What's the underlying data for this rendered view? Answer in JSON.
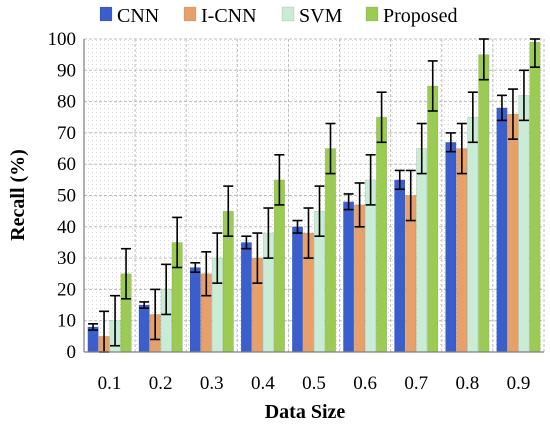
{
  "chart_data": {
    "type": "bar",
    "xlabel": "Data Size",
    "ylabel": "Recall (%)",
    "ylim": [
      0,
      100
    ],
    "yticks": [
      0,
      10,
      20,
      30,
      40,
      50,
      60,
      70,
      80,
      90,
      100
    ],
    "grid": true,
    "legend_position": "top",
    "categories": [
      "0.1",
      "0.2",
      "0.3",
      "0.4",
      "0.5",
      "0.6",
      "0.7",
      "0.8",
      "0.9"
    ],
    "series": [
      {
        "name": "CNN",
        "color": "#3A5FCD",
        "values": [
          8,
          15,
          27,
          35,
          40,
          48,
          55,
          67,
          78
        ],
        "errors": [
          1,
          1,
          1.5,
          2,
          2,
          2.5,
          3,
          3,
          4
        ]
      },
      {
        "name": "I-CNN",
        "color": "#E8A06A",
        "values": [
          5,
          12,
          25,
          30,
          38,
          47,
          50,
          65,
          76
        ],
        "errors": [
          8,
          8,
          7,
          8,
          8,
          7,
          8,
          8,
          8
        ]
      },
      {
        "name": "SVM",
        "color": "#C8ECD6",
        "values": [
          10,
          20,
          30,
          38,
          45,
          55,
          65,
          75,
          82
        ],
        "errors": [
          8,
          8,
          8,
          8,
          8,
          8,
          8,
          8,
          8
        ]
      },
      {
        "name": "Proposed",
        "color": "#9BCB52",
        "values": [
          25,
          35,
          45,
          55,
          65,
          75,
          85,
          95,
          99
        ],
        "errors": [
          8,
          8,
          8,
          8,
          8,
          8,
          8,
          8,
          8
        ]
      }
    ]
  }
}
